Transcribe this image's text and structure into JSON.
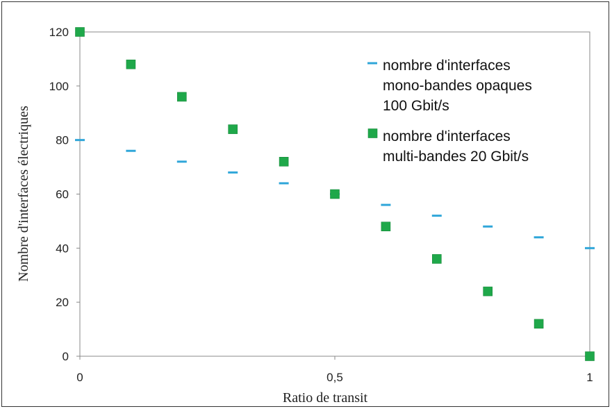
{
  "chart_data": {
    "type": "scatter",
    "title": "",
    "xlabel": "Ratio de transit",
    "ylabel": "Nombre d'interfaces  électriques",
    "xlim": [
      0,
      1
    ],
    "ylim": [
      0,
      120
    ],
    "x_ticks": [
      0,
      0.5,
      1
    ],
    "x_tick_labels": [
      "0",
      "0,5",
      "1"
    ],
    "y_ticks": [
      0,
      20,
      40,
      60,
      80,
      100,
      120
    ],
    "y_tick_labels": [
      "0",
      "20",
      "40",
      "60",
      "80",
      "100",
      "120"
    ],
    "grid": false,
    "legend_position": "top-right",
    "series": [
      {
        "name_lines": [
          "nombre d'interfaces",
          "mono-bandes opaques",
          "100 Gbit/s"
        ],
        "marker": "dash",
        "color": "#2fa6d9",
        "x": [
          0,
          0.1,
          0.2,
          0.3,
          0.4,
          0.5,
          0.6,
          0.7,
          0.8,
          0.9,
          1.0
        ],
        "y": [
          80,
          76,
          72,
          68,
          64,
          60,
          56,
          52,
          48,
          44,
          40
        ]
      },
      {
        "name_lines": [
          "nombre d'interfaces",
          "multi-bandes 20 Gbit/s"
        ],
        "marker": "square",
        "color": "#1fa84a",
        "x": [
          0,
          0.1,
          0.2,
          0.3,
          0.4,
          0.5,
          0.6,
          0.7,
          0.8,
          0.9,
          1.0
        ],
        "y": [
          120,
          108,
          96,
          84,
          72,
          60,
          48,
          36,
          24,
          12,
          0
        ]
      }
    ]
  }
}
